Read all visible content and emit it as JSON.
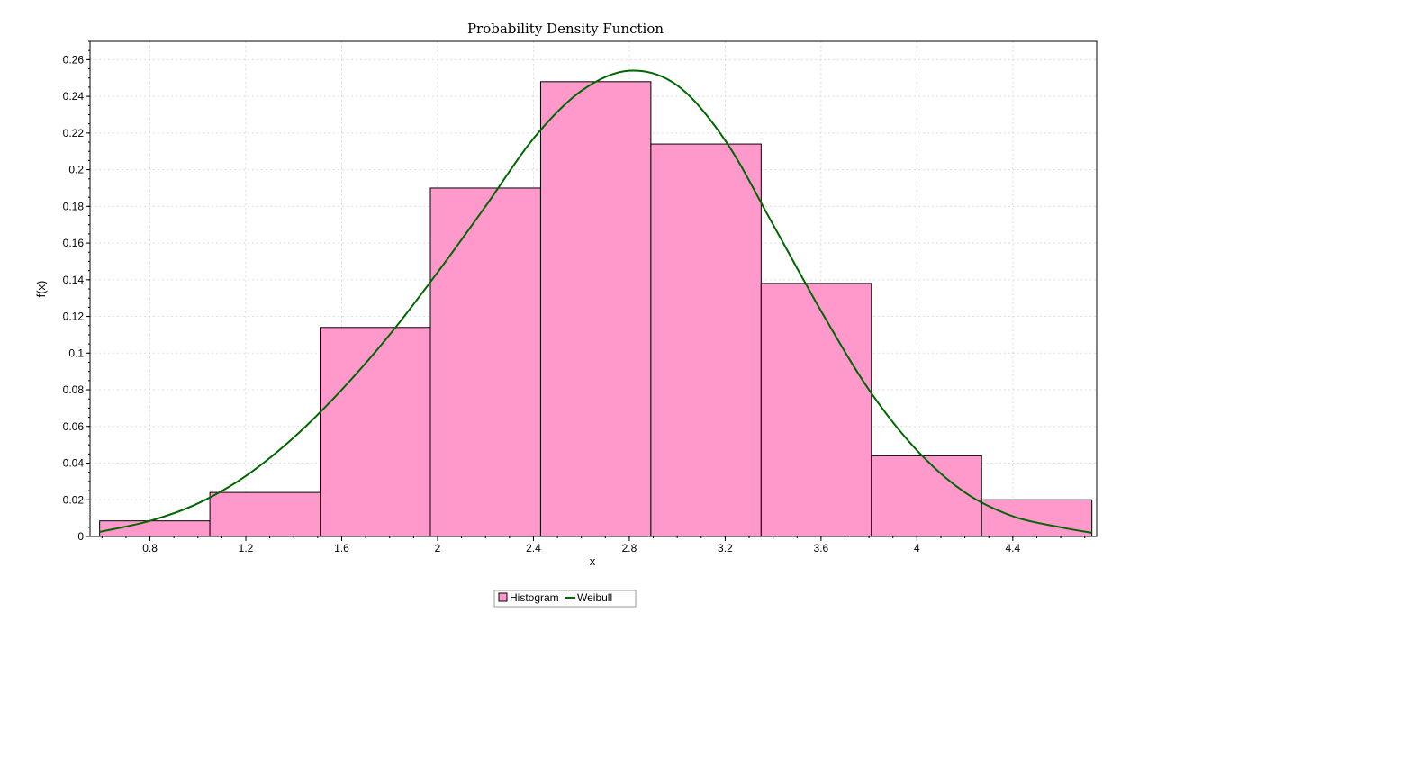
{
  "chart_data": {
    "type": "bar",
    "title": "Probability Density Function",
    "xlabel": "x",
    "ylabel": "f(x)",
    "xlim": [
      0.55,
      4.75
    ],
    "ylim": [
      0,
      0.27
    ],
    "x_ticks": [
      "0.8",
      "1.2",
      "1.6",
      "2",
      "2.4",
      "2.8",
      "3.2",
      "3.6",
      "4",
      "4.4"
    ],
    "y_ticks": [
      "0",
      "0.02",
      "0.04",
      "0.06",
      "0.08",
      "0.1",
      "0.12",
      "0.14",
      "0.16",
      "0.18",
      "0.2",
      "0.22",
      "0.24",
      "0.26"
    ],
    "grid": true,
    "legend_position": "bottom-center",
    "bins": [
      {
        "x0": 0.59,
        "x1": 1.05,
        "value": 0.0085
      },
      {
        "x0": 1.05,
        "x1": 1.51,
        "value": 0.024
      },
      {
        "x0": 1.51,
        "x1": 1.97,
        "value": 0.114
      },
      {
        "x0": 1.97,
        "x1": 2.43,
        "value": 0.19
      },
      {
        "x0": 2.43,
        "x1": 2.89,
        "value": 0.248
      },
      {
        "x0": 2.89,
        "x1": 3.35,
        "value": 0.214
      },
      {
        "x0": 3.35,
        "x1": 3.81,
        "value": 0.138
      },
      {
        "x0": 3.81,
        "x1": 4.27,
        "value": 0.044
      },
      {
        "x0": 4.27,
        "x1": 4.73,
        "value": 0.02
      }
    ],
    "series": [
      {
        "name": "Histogram",
        "color": "#ff99cc"
      },
      {
        "name": "Weibull",
        "color": "#006600",
        "points": [
          [
            0.59,
            0.0025
          ],
          [
            0.8,
            0.0085
          ],
          [
            1.0,
            0.018
          ],
          [
            1.2,
            0.033
          ],
          [
            1.4,
            0.054
          ],
          [
            1.6,
            0.08
          ],
          [
            1.8,
            0.11
          ],
          [
            2.0,
            0.144
          ],
          [
            2.2,
            0.18
          ],
          [
            2.4,
            0.217
          ],
          [
            2.6,
            0.243
          ],
          [
            2.8,
            0.254
          ],
          [
            3.0,
            0.246
          ],
          [
            3.2,
            0.216
          ],
          [
            3.4,
            0.17
          ],
          [
            3.6,
            0.123
          ],
          [
            3.8,
            0.08
          ],
          [
            4.0,
            0.047
          ],
          [
            4.2,
            0.024
          ],
          [
            4.4,
            0.011
          ],
          [
            4.6,
            0.005
          ],
          [
            4.73,
            0.002
          ]
        ]
      }
    ]
  }
}
